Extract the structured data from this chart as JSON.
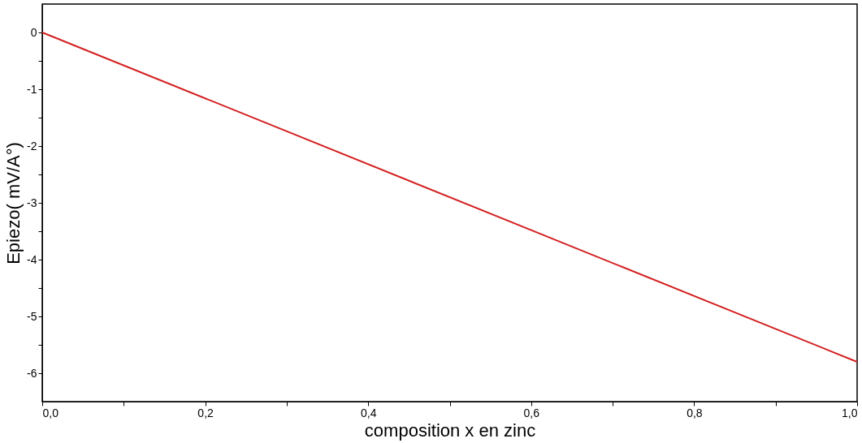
{
  "chart_data": {
    "type": "line",
    "xlabel": "composition x en zinc",
    "ylabel": "Epiezo( mV/A°)",
    "x": [
      0,
      1
    ],
    "series": [
      {
        "color": "#d42020",
        "values": [
          0,
          -5.8
        ]
      }
    ],
    "xlim": [
      0,
      1
    ],
    "ylim": [
      -6.5,
      0.5
    ],
    "xticks": [
      {
        "value": 0,
        "label": "0,0"
      },
      {
        "value": 0.1,
        "label": null
      },
      {
        "value": 0.2,
        "label": "0,2"
      },
      {
        "value": 0.3,
        "label": null
      },
      {
        "value": 0.4,
        "label": "0,4"
      },
      {
        "value": 0.5,
        "label": null
      },
      {
        "value": 0.6,
        "label": "0,6"
      },
      {
        "value": 0.7,
        "label": null
      },
      {
        "value": 0.8,
        "label": "0,8"
      },
      {
        "value": 0.9,
        "label": null
      },
      {
        "value": 1,
        "label": "1,0"
      }
    ],
    "yticks": [
      0,
      {
        "value": -0.5,
        "label": null
      },
      -1,
      {
        "value": -1.5,
        "label": null
      },
      -2,
      {
        "value": -2.5,
        "label": null
      },
      -3,
      {
        "value": -3.5,
        "label": null
      },
      -4,
      {
        "value": -4.5,
        "label": null
      },
      -5,
      {
        "value": -5.5,
        "label": null
      },
      -6
    ],
    "grid": false,
    "marker": "none",
    "line_style": "solid"
  }
}
